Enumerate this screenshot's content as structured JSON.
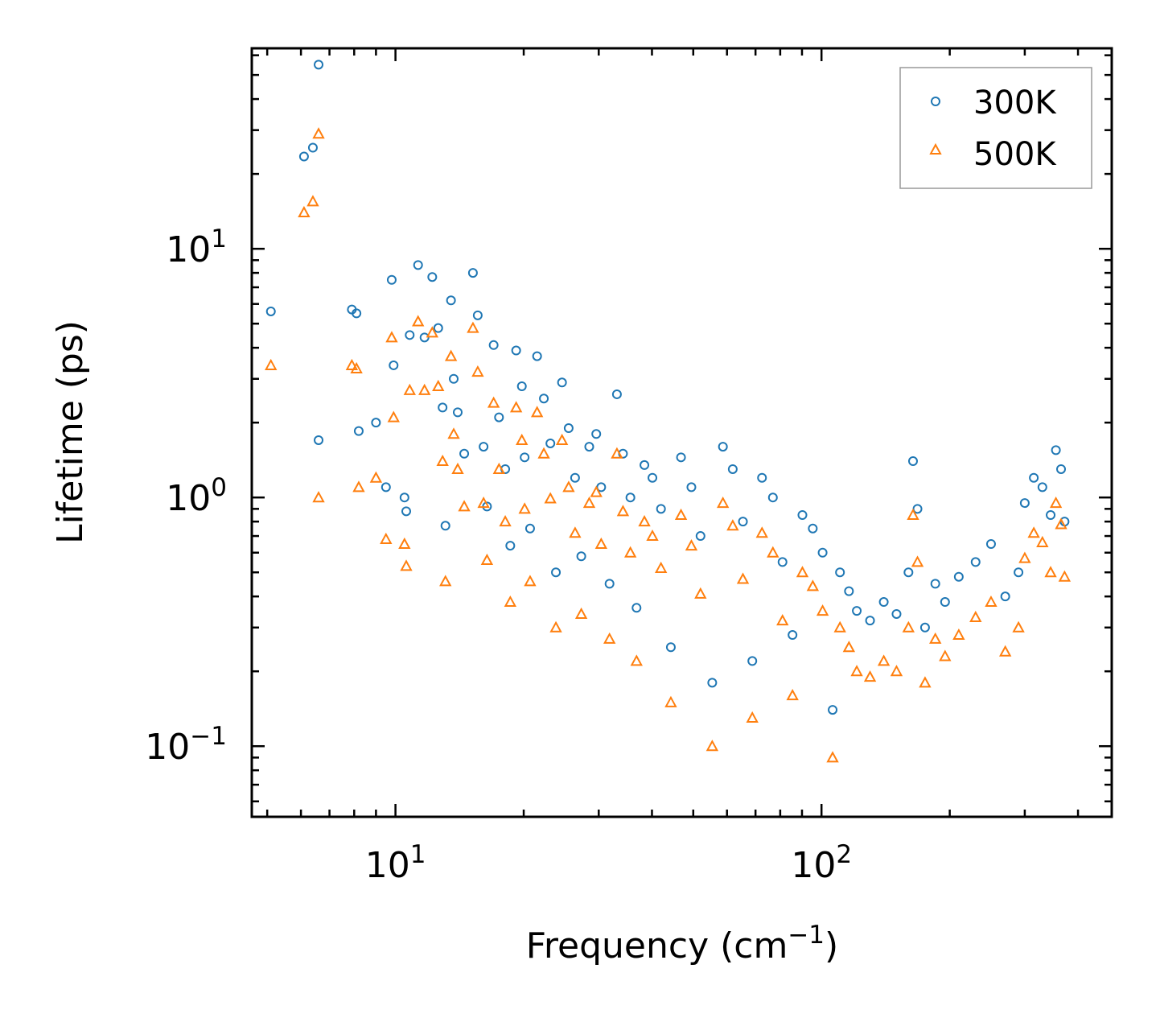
{
  "chart_data": {
    "type": "scatter",
    "title": "",
    "xlabel": "Frequency (cm",
    "xlabel_sup": "−1",
    "xlabel_suffix": ")",
    "ylabel": "Lifetime (ps)",
    "x_scale": "log",
    "y_scale": "log",
    "xlim": [
      4.6,
      480
    ],
    "ylim": [
      0.052,
      64
    ],
    "grid": false,
    "legend_position": "top-right",
    "x_ticks": [
      {
        "value": 10,
        "base": "10",
        "exp": "1"
      },
      {
        "value": 100,
        "base": "10",
        "exp": "2"
      }
    ],
    "y_ticks": [
      {
        "value": 0.1,
        "base": "10",
        "exp": "−1"
      },
      {
        "value": 1,
        "base": "10",
        "exp": "0"
      },
      {
        "value": 10,
        "base": "10",
        "exp": "1"
      }
    ],
    "series": [
      {
        "name": "300K",
        "color": "#1f77b4",
        "marker": "circle",
        "x": [
          5.1,
          6.1,
          6.4,
          6.6,
          6.6,
          7.9,
          8.1,
          8.2,
          9.0,
          9.5,
          9.8,
          9.9,
          10.5,
          10.6,
          10.8,
          11.3,
          11.7,
          12.2,
          12.6,
          12.9,
          13.1,
          13.5,
          13.7,
          14.0,
          14.5,
          15.2,
          15.6,
          16.1,
          16.4,
          17.0,
          17.5,
          18.1,
          18.6,
          19.2,
          19.8,
          20.1,
          20.7,
          21.5,
          22.3,
          23.1,
          23.8,
          24.6,
          25.5,
          26.4,
          27.3,
          28.5,
          29.6,
          30.4,
          31.8,
          33.1,
          34.2,
          35.6,
          36.8,
          38.4,
          40.1,
          42.0,
          44.3,
          46.8,
          49.5,
          52.0,
          55.4,
          58.7,
          61.9,
          65.4,
          68.8,
          72.5,
          76.9,
          81.0,
          85.5,
          90.2,
          95.4,
          100.6,
          106.2,
          110.5,
          116.0,
          121.0,
          130.0,
          140.0,
          150.0,
          160.0,
          164.0,
          168.0,
          175.0,
          185.0,
          195.0,
          210.0,
          230.0,
          250.0,
          270.0,
          290.0,
          300.0,
          315.0,
          330.0,
          345.0,
          355.0,
          365.0,
          372.0
        ],
        "y": [
          5.6,
          23.5,
          25.5,
          55.0,
          1.7,
          5.7,
          5.5,
          1.85,
          2.0,
          1.1,
          7.5,
          3.4,
          1.0,
          0.88,
          4.5,
          8.6,
          4.4,
          7.7,
          4.8,
          2.3,
          0.77,
          6.2,
          3.0,
          2.2,
          1.5,
          8.0,
          5.4,
          1.6,
          0.92,
          4.1,
          2.1,
          1.3,
          0.64,
          3.9,
          2.8,
          1.45,
          0.75,
          3.7,
          2.5,
          1.65,
          0.5,
          2.9,
          1.9,
          1.2,
          0.58,
          1.6,
          1.8,
          1.1,
          0.45,
          2.6,
          1.5,
          1.0,
          0.36,
          1.35,
          1.2,
          0.9,
          0.25,
          1.45,
          1.1,
          0.7,
          0.18,
          1.6,
          1.3,
          0.8,
          0.22,
          1.2,
          1.0,
          0.55,
          0.28,
          0.85,
          0.75,
          0.6,
          0.14,
          0.5,
          0.42,
          0.35,
          0.32,
          0.38,
          0.34,
          0.5,
          1.4,
          0.9,
          0.3,
          0.45,
          0.38,
          0.48,
          0.55,
          0.65,
          0.4,
          0.5,
          0.95,
          1.2,
          1.1,
          0.85,
          1.55,
          1.3,
          0.8
        ]
      },
      {
        "name": "500K",
        "color": "#ff7f0e",
        "marker": "triangle",
        "x": [
          5.1,
          6.1,
          6.4,
          6.6,
          6.6,
          7.9,
          8.1,
          8.2,
          9.0,
          9.5,
          9.8,
          9.9,
          10.5,
          10.6,
          10.8,
          11.3,
          11.7,
          12.2,
          12.6,
          12.9,
          13.1,
          13.5,
          13.7,
          14.0,
          14.5,
          15.2,
          15.6,
          16.1,
          16.4,
          17.0,
          17.5,
          18.1,
          18.6,
          19.2,
          19.8,
          20.1,
          20.7,
          21.5,
          22.3,
          23.1,
          23.8,
          24.6,
          25.5,
          26.4,
          27.3,
          28.5,
          29.6,
          30.4,
          31.8,
          33.1,
          34.2,
          35.6,
          36.8,
          38.4,
          40.1,
          42.0,
          44.3,
          46.8,
          49.5,
          52.0,
          55.4,
          58.7,
          61.9,
          65.4,
          68.8,
          72.5,
          76.9,
          81.0,
          85.5,
          90.2,
          95.4,
          100.6,
          106.2,
          110.5,
          116.0,
          121.0,
          130.0,
          140.0,
          150.0,
          160.0,
          164.0,
          168.0,
          175.0,
          185.0,
          195.0,
          210.0,
          230.0,
          250.0,
          270.0,
          290.0,
          300.0,
          315.0,
          330.0,
          345.0,
          355.0,
          365.0,
          372.0
        ],
        "y": [
          3.4,
          14.0,
          15.5,
          29.0,
          1.0,
          3.4,
          3.3,
          1.1,
          1.2,
          0.68,
          4.4,
          2.1,
          0.65,
          0.53,
          2.7,
          5.1,
          2.7,
          4.6,
          2.8,
          1.4,
          0.46,
          3.7,
          1.8,
          1.3,
          0.92,
          4.8,
          3.2,
          0.95,
          0.56,
          2.4,
          1.3,
          0.8,
          0.38,
          2.3,
          1.7,
          0.9,
          0.46,
          2.2,
          1.5,
          0.99,
          0.3,
          1.7,
          1.1,
          0.72,
          0.34,
          0.95,
          1.05,
          0.65,
          0.27,
          1.5,
          0.88,
          0.6,
          0.22,
          0.8,
          0.7,
          0.52,
          0.15,
          0.85,
          0.64,
          0.41,
          0.1,
          0.95,
          0.77,
          0.47,
          0.13,
          0.72,
          0.6,
          0.32,
          0.16,
          0.5,
          0.44,
          0.35,
          0.09,
          0.3,
          0.25,
          0.2,
          0.19,
          0.22,
          0.2,
          0.3,
          0.85,
          0.55,
          0.18,
          0.27,
          0.23,
          0.28,
          0.33,
          0.38,
          0.24,
          0.3,
          0.57,
          0.72,
          0.66,
          0.5,
          0.95,
          0.78,
          0.48
        ]
      }
    ]
  }
}
